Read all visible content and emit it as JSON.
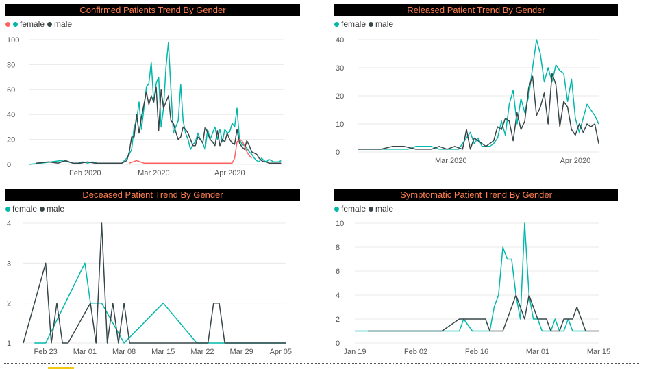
{
  "colors": {
    "female": "#01b8aa",
    "male": "#374649",
    "gender_unknown": "#fd625e",
    "title_bg": "#000000",
    "title_text": "#ff7f50",
    "grid": "#e8e8e8"
  },
  "chart_data": [
    {
      "id": "confirmed",
      "type": "line",
      "title": "Confirmed Patients Trend By Gender",
      "legend": {
        "position": "top-left",
        "items": [
          {
            "label": "",
            "color": "#fd625e"
          },
          {
            "label": "female",
            "color": "#01b8aa"
          },
          {
            "label": "male",
            "color": "#374649"
          }
        ]
      },
      "yticks": [
        0,
        20,
        40,
        60,
        80,
        100
      ],
      "ylim": [
        0,
        100
      ],
      "xlim": [
        0,
        104
      ],
      "xticks": [
        {
          "x": 23,
          "label": "Feb 2020"
        },
        {
          "x": 51,
          "label": "Mar 2020"
        },
        {
          "x": 82,
          "label": "Apr 2020"
        }
      ],
      "grid": true,
      "series": [
        {
          "name": "female",
          "color": "#01b8aa",
          "x": [
            0,
            5,
            9,
            13,
            16,
            18,
            20,
            22,
            24,
            26,
            28,
            30,
            32,
            34,
            36,
            38,
            40,
            41,
            42,
            43,
            44,
            45,
            46,
            47,
            48,
            49,
            50,
            51,
            52,
            53,
            54,
            55,
            56,
            57,
            58,
            59,
            60,
            61,
            62,
            63,
            64,
            65,
            66,
            67,
            68,
            69,
            70,
            71,
            72,
            73,
            74,
            75,
            76,
            77,
            78,
            79,
            80,
            81,
            82,
            83,
            84,
            85,
            86,
            87,
            88,
            89,
            90,
            91,
            92,
            93,
            94,
            95,
            96,
            97,
            98,
            99,
            100,
            101,
            102,
            103
          ],
          "y": [
            0,
            1,
            2,
            3,
            2,
            1,
            1,
            2,
            1,
            2,
            1,
            1,
            1,
            1,
            1,
            1,
            5,
            8,
            12,
            30,
            35,
            50,
            28,
            45,
            62,
            65,
            82,
            50,
            65,
            70,
            30,
            45,
            78,
            98,
            60,
            25,
            30,
            35,
            64,
            35,
            25,
            20,
            12,
            16,
            18,
            25,
            20,
            17,
            12,
            28,
            20,
            25,
            30,
            20,
            28,
            18,
            28,
            25,
            26,
            33,
            30,
            45,
            20,
            16,
            15,
            13,
            10,
            8,
            5,
            3,
            2,
            5,
            3,
            2,
            4,
            3,
            2,
            2,
            2,
            3
          ]
        },
        {
          "name": "male",
          "color": "#374649",
          "x": [
            3,
            8,
            12,
            15,
            18,
            21,
            24,
            27,
            30,
            33,
            36,
            38,
            40,
            41,
            42,
            43,
            44,
            45,
            46,
            47,
            48,
            49,
            50,
            51,
            52,
            53,
            54,
            55,
            56,
            57,
            58,
            59,
            60,
            61,
            62,
            63,
            64,
            65,
            66,
            67,
            68,
            69,
            70,
            71,
            72,
            73,
            74,
            75,
            76,
            77,
            78,
            79,
            80,
            81,
            82,
            83,
            84,
            85,
            86,
            87,
            88,
            89,
            90,
            91,
            92,
            93,
            94,
            95,
            96,
            97,
            98,
            99,
            100,
            101,
            102,
            103
          ],
          "y": [
            1,
            2,
            1,
            3,
            1,
            1,
            2,
            1,
            1,
            1,
            1,
            1,
            3,
            10,
            22,
            22,
            40,
            25,
            38,
            48,
            58,
            48,
            55,
            50,
            62,
            27,
            60,
            45,
            50,
            55,
            35,
            33,
            26,
            20,
            22,
            30,
            28,
            25,
            20,
            15,
            15,
            22,
            20,
            17,
            30,
            25,
            20,
            18,
            15,
            27,
            15,
            20,
            18,
            25,
            20,
            17,
            16,
            28,
            17,
            14,
            12,
            19,
            15,
            10,
            9,
            8,
            5,
            3,
            2,
            2,
            1,
            1,
            1,
            1,
            1,
            1
          ]
        },
        {
          "name": "",
          "color": "#fd625e",
          "x": [
            41,
            44,
            47,
            50,
            55,
            60,
            65,
            70,
            75,
            80,
            83,
            84,
            85,
            86,
            87,
            88,
            89,
            90,
            91
          ],
          "y": [
            1,
            3,
            1,
            1,
            1,
            1,
            1,
            1,
            1,
            1,
            1,
            5,
            18,
            20,
            19,
            15,
            10,
            7,
            5
          ]
        }
      ]
    },
    {
      "id": "released",
      "type": "line",
      "title": "Released Patient Trend By Gender",
      "legend": {
        "position": "top-left",
        "items": [
          {
            "label": "female",
            "color": "#01b8aa"
          },
          {
            "label": "male",
            "color": "#374649"
          }
        ]
      },
      "yticks": [
        0,
        10,
        20,
        30,
        40
      ],
      "ylim": [
        0,
        40
      ],
      "xlim": [
        0,
        62
      ],
      "xticks": [
        {
          "x": 24,
          "label": "Mar 2020"
        },
        {
          "x": 56,
          "label": "Apr 2020"
        }
      ],
      "grid": true,
      "series": [
        {
          "name": "female",
          "color": "#01b8aa",
          "x": [
            0,
            3,
            6,
            9,
            11,
            13,
            15,
            17,
            19,
            21,
            22,
            23,
            24,
            25,
            26,
            27,
            28,
            29,
            30,
            31,
            32,
            33,
            34,
            35,
            36,
            37,
            38,
            39,
            40,
            41,
            42,
            43,
            44,
            45,
            46,
            47,
            48,
            49,
            50,
            51,
            52,
            53,
            54,
            55,
            56,
            57,
            58,
            59,
            60,
            61,
            62
          ],
          "y": [
            1,
            1,
            1,
            1,
            1,
            1,
            2,
            2,
            2,
            1,
            1,
            1,
            1,
            1,
            1,
            3,
            5,
            7,
            3,
            5,
            2,
            2,
            2,
            3,
            5,
            11,
            6,
            17,
            22,
            10,
            19,
            14,
            20,
            30,
            40,
            35,
            25,
            30,
            25,
            31,
            29,
            28,
            18,
            26,
            12,
            7,
            12,
            17,
            15,
            13,
            10
          ]
        },
        {
          "name": "male",
          "color": "#374649",
          "x": [
            0,
            3,
            6,
            9,
            12,
            15,
            17,
            19,
            21,
            23,
            25,
            27,
            28,
            29,
            30,
            31,
            32,
            33,
            34,
            35,
            36,
            37,
            38,
            39,
            40,
            41,
            42,
            43,
            44,
            45,
            46,
            47,
            48,
            49,
            50,
            51,
            52,
            53,
            54,
            55,
            56,
            57,
            58,
            59,
            60,
            61,
            62
          ],
          "y": [
            1,
            1,
            1,
            2,
            2,
            1,
            1,
            1,
            2,
            1,
            2,
            1,
            8,
            1,
            5,
            4,
            3,
            2,
            3,
            4,
            9,
            8,
            12,
            11,
            4,
            14,
            8,
            11,
            23,
            27,
            13,
            16,
            21,
            10,
            28,
            24,
            9,
            18,
            16,
            8,
            6,
            10,
            7,
            10,
            9,
            10,
            3
          ]
        }
      ]
    },
    {
      "id": "deceased",
      "type": "line",
      "title": "Deceased Patient Trend By Gender",
      "legend": {
        "position": "top-left",
        "items": [
          {
            "label": "female",
            "color": "#01b8aa"
          },
          {
            "label": "male",
            "color": "#374649"
          }
        ]
      },
      "yticks": [
        1,
        2,
        3,
        4
      ],
      "ylim": [
        1,
        4
      ],
      "xlim": [
        0,
        47
      ],
      "xticks": [
        {
          "x": 4,
          "label": "Feb 23"
        },
        {
          "x": 11,
          "label": "Mar 01"
        },
        {
          "x": 18,
          "label": "Mar 08"
        },
        {
          "x": 25,
          "label": "Mar 15"
        },
        {
          "x": 32,
          "label": "Mar 22"
        },
        {
          "x": 39,
          "label": "Mar 29"
        },
        {
          "x": 46,
          "label": "Apr 05"
        }
      ],
      "grid": true,
      "series": [
        {
          "name": "female",
          "color": "#01b8aa",
          "x": [
            2,
            4,
            11,
            12,
            14,
            18,
            25,
            31,
            47
          ],
          "y": [
            1,
            1,
            3,
            2,
            2,
            1,
            2,
            1,
            1
          ]
        },
        {
          "name": "male",
          "color": "#374649",
          "x": [
            0,
            4,
            5,
            6,
            7,
            8,
            12,
            13,
            14,
            15,
            16,
            17,
            18,
            19,
            20,
            21,
            22,
            29,
            30,
            31,
            32,
            33,
            34,
            35,
            36,
            47
          ],
          "y": [
            1,
            3,
            1,
            2,
            1,
            1,
            2,
            1,
            4,
            1,
            2,
            1,
            2,
            1,
            1,
            1,
            1,
            1,
            1,
            1,
            1,
            1,
            2,
            2,
            1,
            1
          ]
        }
      ]
    },
    {
      "id": "symptomatic",
      "type": "line",
      "title": "Symptomatic Patient Trend By Gender",
      "legend": {
        "position": "top-left",
        "items": [
          {
            "label": "female",
            "color": "#01b8aa"
          },
          {
            "label": "male",
            "color": "#374649"
          }
        ]
      },
      "yticks": [
        0,
        2,
        4,
        6,
        8,
        10
      ],
      "ylim": [
        0,
        10
      ],
      "xlim": [
        0,
        56
      ],
      "xticks": [
        {
          "x": 0,
          "label": "Jan 19"
        },
        {
          "x": 14,
          "label": "Feb 02"
        },
        {
          "x": 28,
          "label": "Feb 16"
        },
        {
          "x": 42,
          "label": "Mar 01"
        },
        {
          "x": 56,
          "label": "Mar 15"
        }
      ],
      "grid": true,
      "series": [
        {
          "name": "female",
          "color": "#01b8aa",
          "x": [
            0,
            3,
            6,
            10,
            14,
            20,
            24,
            25,
            27,
            29,
            31,
            32,
            33,
            34,
            35,
            36,
            37,
            38,
            39,
            40,
            41,
            42,
            43,
            44,
            45,
            46,
            47,
            48,
            49,
            50,
            51,
            52,
            53
          ],
          "y": [
            1,
            1,
            1,
            1,
            1,
            1,
            1,
            2,
            1,
            1,
            1,
            3,
            4,
            8,
            7,
            7,
            4,
            2,
            10,
            4,
            2,
            2,
            1,
            1,
            1,
            2,
            1,
            1,
            2,
            1,
            1,
            1,
            1
          ]
        },
        {
          "name": "male",
          "color": "#374649",
          "x": [
            3,
            8,
            14,
            20,
            24,
            26,
            30,
            31,
            32,
            33,
            34,
            35,
            36,
            37,
            38,
            39,
            40,
            41,
            42,
            43,
            44,
            45,
            46,
            47,
            48,
            49,
            50,
            51,
            52,
            53,
            54,
            56
          ],
          "y": [
            1,
            1,
            1,
            1,
            2,
            2,
            2,
            1,
            1,
            1,
            1,
            2,
            3,
            4,
            3,
            2,
            4,
            3,
            2,
            2,
            2,
            1,
            1,
            1,
            2,
            2,
            2,
            3,
            2,
            1,
            1,
            1
          ]
        }
      ]
    }
  ]
}
